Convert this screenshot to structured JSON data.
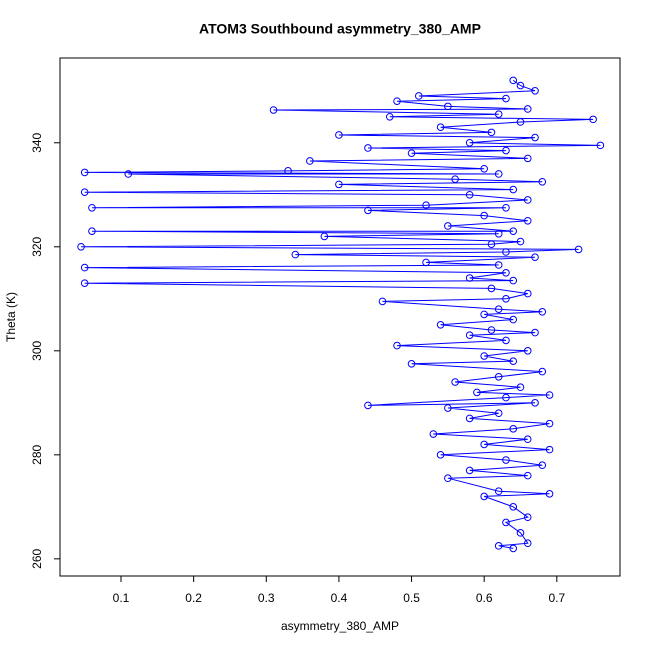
{
  "chart_data": {
    "type": "line",
    "markers": true,
    "title": "ATOM3 Southbound asymmetry_380_AMP",
    "x_label": "asymmetry_380_AMP",
    "y_label": "Theta (K)",
    "color": "#0000ff",
    "x": [
      0.64,
      0.62,
      0.66,
      0.65,
      0.63,
      0.66,
      0.64,
      0.6,
      0.69,
      0.62,
      0.55,
      0.66,
      0.58,
      0.68,
      0.63,
      0.54,
      0.69,
      0.6,
      0.66,
      0.53,
      0.64,
      0.69,
      0.58,
      0.62,
      0.55,
      0.67,
      0.44,
      0.63,
      0.69,
      0.59,
      0.65,
      0.56,
      0.62,
      0.68,
      0.5,
      0.64,
      0.6,
      0.66,
      0.48,
      0.63,
      0.58,
      0.67,
      0.61,
      0.54,
      0.64,
      0.6,
      0.68,
      0.62,
      0.46,
      0.63,
      0.66,
      0.61,
      0.05,
      0.64,
      0.58,
      0.63,
      0.05,
      0.62,
      0.52,
      0.67,
      0.34,
      0.63,
      0.73,
      0.045,
      0.61,
      0.65,
      0.38,
      0.62,
      0.06,
      0.64,
      0.55,
      0.66,
      0.6,
      0.44,
      0.63,
      0.06,
      0.52,
      0.66,
      0.58,
      0.05,
      0.64,
      0.4,
      0.68,
      0.56,
      0.11,
      0.62,
      0.05,
      0.33,
      0.6,
      0.36,
      0.66,
      0.5,
      0.63,
      0.44,
      0.76,
      0.58,
      0.67,
      0.4,
      0.61,
      0.54,
      0.65,
      0.75,
      0.47,
      0.62,
      0.31,
      0.66,
      0.55,
      0.48,
      0.63,
      0.51,
      0.67,
      0.65,
      0.64
    ],
    "values": [
      262,
      262.5,
      263,
      265,
      267,
      268,
      270,
      272,
      272.5,
      273,
      275.5,
      276,
      277,
      278,
      279,
      280,
      281,
      282,
      283,
      284,
      285,
      286,
      287,
      288,
      289,
      290,
      289.5,
      291,
      291.5,
      292,
      293,
      294,
      295,
      296,
      297.5,
      298,
      299,
      300,
      301,
      302,
      303,
      303.5,
      304,
      305,
      306,
      307,
      307.5,
      308,
      309.5,
      310,
      311,
      312,
      313,
      313.5,
      314,
      315,
      316,
      316.5,
      317,
      318,
      318.5,
      319,
      319.5,
      320,
      320.5,
      321,
      322,
      322.5,
      323,
      323,
      324,
      325,
      326,
      327,
      327.5,
      327.5,
      328,
      329,
      330,
      330.5,
      331,
      332,
      332.5,
      333,
      334,
      334,
      334.3,
      334.6,
      335,
      336.5,
      337,
      338,
      338.5,
      339,
      339.5,
      340,
      341,
      341.5,
      342,
      343,
      344,
      344.5,
      345,
      345.5,
      346.3,
      346.5,
      347,
      348,
      348.5,
      349,
      350,
      351,
      352
    ],
    "xlim": [
      0.016,
      0.787
    ],
    "ylim": [
      256.7,
      356.3
    ],
    "xticks": [
      0.1,
      0.2,
      0.3,
      0.4,
      0.5,
      0.6,
      0.7
    ],
    "yticks": [
      260,
      280,
      300,
      320,
      340
    ]
  }
}
